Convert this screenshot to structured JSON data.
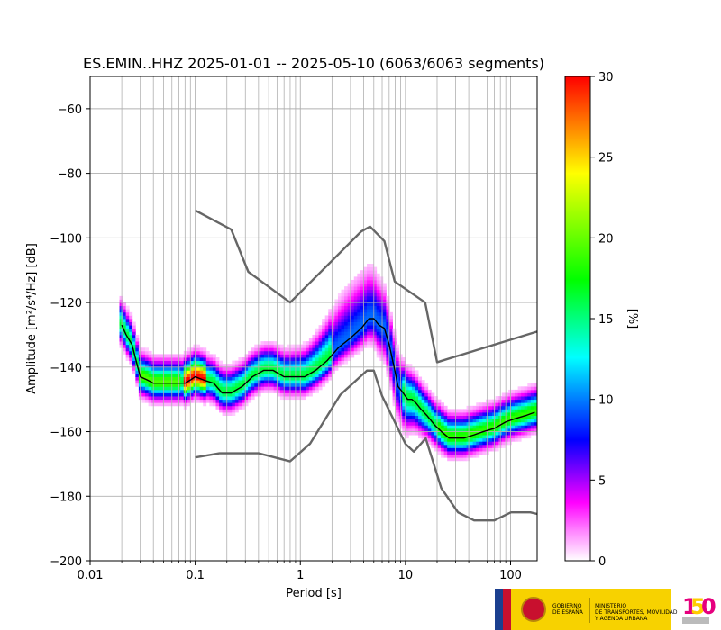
{
  "chart_data": {
    "type": "heatmap",
    "title": "ES.EMIN..HHZ   2025-01-01 -- 2025-05-10  (6063/6063 segments)",
    "xlabel": "Period [s]",
    "ylabel": "Amplitude [m²/s⁴/Hz] [dB]",
    "xscale": "log",
    "xlim": [
      0.01,
      179
    ],
    "ylim": [
      -200,
      -50
    ],
    "x_ticks": [
      0.01,
      0.1,
      1,
      10,
      100
    ],
    "x_tick_labels": [
      "0.01",
      "0.1",
      "1",
      "10",
      "100"
    ],
    "y_ticks": [
      -200,
      -180,
      -160,
      -140,
      -120,
      -100,
      -80,
      -60
    ],
    "y_tick_labels": [
      "−200",
      "−180",
      "−160",
      "−140",
      "−120",
      "−100",
      "−80",
      "−60"
    ],
    "grid": true,
    "colorbar": {
      "label": "[%]",
      "range": [
        0,
        30
      ],
      "ticks": [
        0,
        5,
        10,
        15,
        20,
        25,
        30
      ],
      "tick_labels": [
        "0",
        "5",
        "10",
        "15",
        "20",
        "25",
        "30"
      ],
      "colormap": [
        "#ffffff",
        "#ff00ff",
        "#0000ff",
        "#00ffff",
        "#00ff00",
        "#ffff00",
        "#ff0000"
      ]
    },
    "series": [
      {
        "role": "median",
        "color": "#000000",
        "x": [
          0.02,
          0.022,
          0.025,
          0.03,
          0.035,
          0.04,
          0.05,
          0.06,
          0.07,
          0.08,
          0.09,
          0.1,
          0.12,
          0.15,
          0.18,
          0.22,
          0.28,
          0.35,
          0.45,
          0.55,
          0.7,
          0.9,
          1.1,
          1.4,
          1.8,
          2.3,
          3.0,
          3.8,
          4.5,
          5.0,
          5.6,
          6.3,
          7.0,
          7.8,
          8.5,
          9.5,
          10.5,
          11.5,
          12.5,
          14,
          16,
          19,
          22,
          26,
          30,
          36,
          45,
          55,
          70,
          90,
          110,
          140,
          170
        ],
        "y": [
          -127,
          -130,
          -133,
          -143,
          -144,
          -145,
          -145,
          -145,
          -145,
          -145,
          -144,
          -143,
          -144,
          -145,
          -148,
          -148,
          -146,
          -143,
          -141,
          -141,
          -143,
          -143,
          -143,
          -141,
          -138,
          -134,
          -131,
          -128,
          -125,
          -125,
          -127,
          -128,
          -133,
          -140,
          -146,
          -148,
          -150,
          -150,
          -151,
          -153,
          -155,
          -158,
          -160,
          -162,
          -162,
          -162,
          -161,
          -160,
          -159,
          -157,
          -156,
          -155,
          -154
        ]
      },
      {
        "role": "high-noise-model",
        "color": "#666666",
        "x": [
          0.1,
          0.22,
          0.32,
          0.8,
          3.8,
          4.6,
          6.3,
          7.9,
          15.4,
          20,
          179
        ],
        "y": [
          -91.5,
          -97.4,
          -110.5,
          -120,
          -98,
          -96.5,
          -101,
          -113.5,
          -120,
          -138.5,
          -129
        ]
      },
      {
        "role": "low-noise-model",
        "color": "#666666",
        "x": [
          0.1,
          0.17,
          0.4,
          0.8,
          1.24,
          2.4,
          4.3,
          5.0,
          6.0,
          10.0,
          12.0,
          15.6,
          21.9,
          31.6,
          45,
          70,
          101,
          154,
          179
        ],
        "y": [
          -168,
          -166.7,
          -166.7,
          -169.2,
          -163.7,
          -148.6,
          -141.1,
          -141.1,
          -149,
          -163.8,
          -166.2,
          -162.1,
          -177.5,
          -185,
          -187.5,
          -187.5,
          -185,
          -185,
          -185.5
        ]
      }
    ]
  },
  "footer": {
    "logo_text_1": "GOBIERNO\nDE ESPAÑA",
    "logo_text_2": "MINISTERIO\nDE TRANSPORTES, MOVILIDAD\nY AGENDA URBANA",
    "badge_logo": "instituto-geografico-150-logo"
  }
}
